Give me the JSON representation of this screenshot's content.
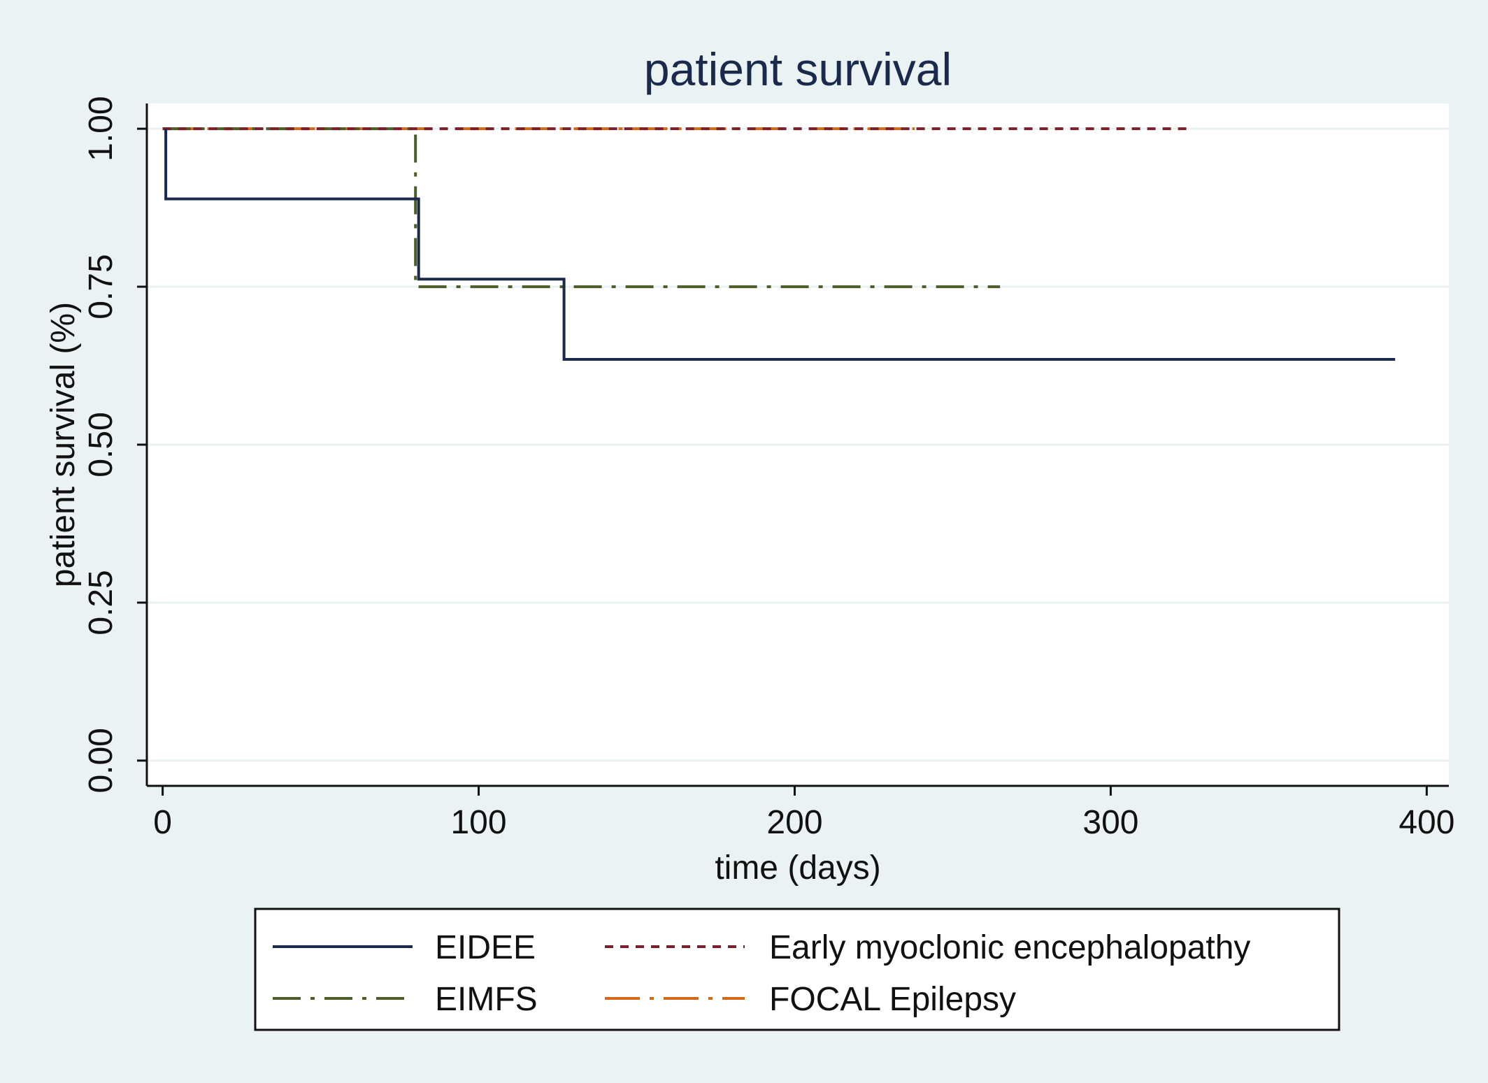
{
  "chart_data": {
    "type": "line",
    "step": true,
    "title": "patient survival",
    "xlabel": "time (days)",
    "ylabel": "patient survival (%)",
    "xlim": [
      -5,
      407
    ],
    "ylim": [
      -0.04,
      1.04
    ],
    "xticks": [
      0,
      100,
      200,
      300,
      400
    ],
    "yticks": [
      0.0,
      0.25,
      0.5,
      0.75,
      1.0
    ],
    "xtick_labels": [
      "0",
      "100",
      "200",
      "300",
      "400"
    ],
    "ytick_labels": [
      "0.00",
      "0.25",
      "0.50",
      "0.75",
      "1.00"
    ],
    "grid": true,
    "legend_position": "bottom",
    "series": [
      {
        "name": "EIDEE",
        "color": "#1b2a4a",
        "dash": "solid",
        "x": [
          1,
          1,
          81,
          81,
          127,
          127,
          390
        ],
        "y": [
          1.0,
          0.889,
          0.889,
          0.762,
          0.762,
          0.635,
          0.635
        ]
      },
      {
        "name": "Early myoclonic encephalopathy",
        "color": "#7a1f2b",
        "dash": "short-dash",
        "x": [
          0,
          326
        ],
        "y": [
          1.0,
          1.0
        ]
      },
      {
        "name": "EIMFS",
        "color": "#4b5e2a",
        "dash": "dash-dot",
        "x": [
          0,
          80,
          80,
          265
        ],
        "y": [
          1.0,
          1.0,
          0.75,
          0.75
        ]
      },
      {
        "name": "FOCAL Epilepsy",
        "color": "#d06a1a",
        "dash": "long-dash-dot",
        "x": [
          0,
          238
        ],
        "y": [
          1.0,
          1.0
        ]
      }
    ]
  }
}
